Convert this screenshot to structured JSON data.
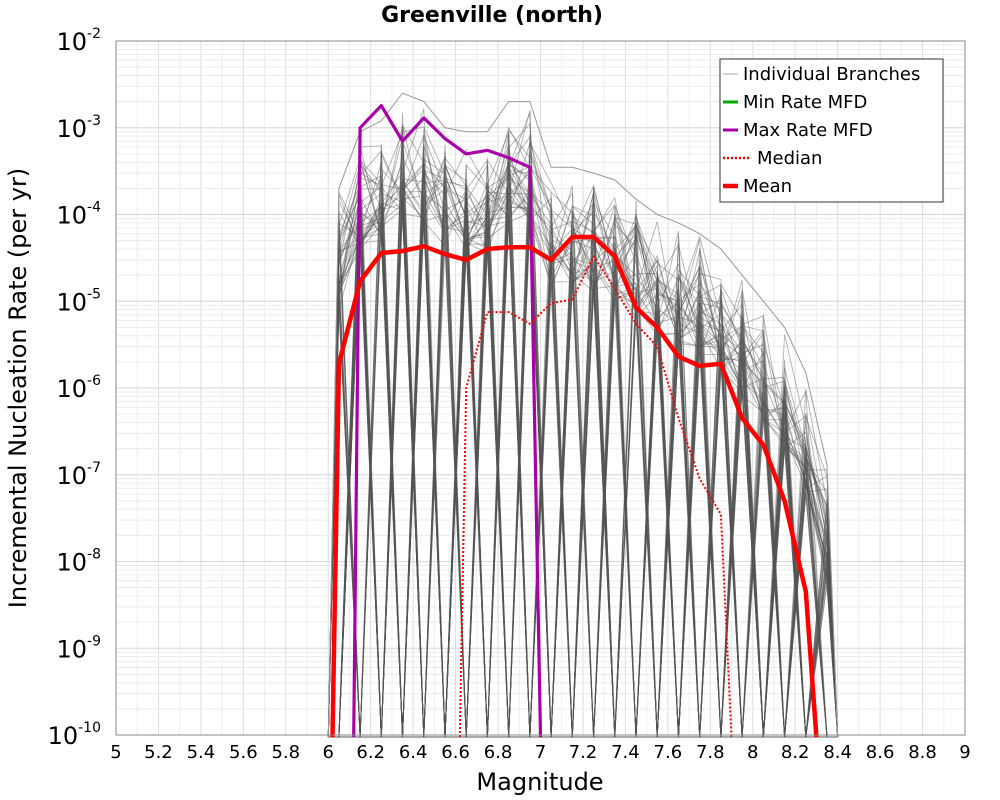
{
  "chart_data": {
    "type": "line",
    "title": "Greenville (north)",
    "xlabel": "Magnitude",
    "ylabel": "Incremental Nucleation Rate (per yr)",
    "xlim": [
      5,
      9
    ],
    "ylim": [
      1e-10,
      0.01
    ],
    "y_scale": "log",
    "grid": true,
    "legend_position": "top-right",
    "x_ticks": [
      "5",
      "5.2",
      "5.4",
      "5.6",
      "5.8",
      "6",
      "6.2",
      "6.4",
      "6.6",
      "6.8",
      "7",
      "7.2",
      "7.4",
      "7.6",
      "7.8",
      "8",
      "8.2",
      "8.4",
      "8.6",
      "8.8",
      "9"
    ],
    "y_ticks": [
      {
        "base": "10",
        "exp": "-10",
        "value": 1e-10
      },
      {
        "base": "10",
        "exp": "-9",
        "value": 1e-09
      },
      {
        "base": "10",
        "exp": "-8",
        "value": 1e-08
      },
      {
        "base": "10",
        "exp": "-7",
        "value": 1e-07
      },
      {
        "base": "10",
        "exp": "-6",
        "value": 1e-06
      },
      {
        "base": "10",
        "exp": "-5",
        "value": 1e-05
      },
      {
        "base": "10",
        "exp": "-4",
        "value": 0.0001
      },
      {
        "base": "10",
        "exp": "-3",
        "value": 0.001
      },
      {
        "base": "10",
        "exp": "-2",
        "value": 0.01
      }
    ],
    "x": [
      6.05,
      6.15,
      6.25,
      6.35,
      6.45,
      6.55,
      6.65,
      6.75,
      6.85,
      6.95,
      7.05,
      7.15,
      7.25,
      7.35,
      7.45,
      7.55,
      7.65,
      7.75,
      7.85,
      7.95,
      8.05,
      8.15,
      8.25,
      8.35
    ],
    "series": [
      {
        "name": "Individual Branches",
        "color": "#555555",
        "style": "band",
        "upper": [
          0.0002,
          0.0009,
          0.0012,
          0.0025,
          0.002,
          0.001,
          0.0009,
          0.0009,
          0.002,
          0.002,
          0.00035,
          0.00035,
          0.0003,
          0.00025,
          0.00015,
          0.0001,
          8e-05,
          6e-05,
          4e-05,
          2e-05,
          1e-05,
          5e-06,
          1.5e-06,
          1.3e-07
        ],
        "lower": [
          null,
          null,
          null,
          null,
          null,
          null,
          null,
          null,
          null,
          null,
          null,
          null,
          null,
          null,
          null,
          null,
          null,
          null,
          null,
          null,
          null,
          null,
          null,
          null
        ]
      },
      {
        "name": "Min Rate MFD",
        "color": "#00aa00",
        "style": "solid",
        "values": [
          null,
          null,
          null,
          null,
          null,
          null,
          null,
          null,
          null,
          null,
          null,
          null,
          null,
          null,
          null,
          null,
          null,
          null,
          null,
          null,
          null,
          null,
          null,
          null
        ]
      },
      {
        "name": "Max Rate MFD",
        "color": "#aa00aa",
        "style": "solid",
        "values": [
          null,
          0.001,
          0.0018,
          0.0007,
          0.0013,
          0.00075,
          0.0005,
          0.00055,
          0.00045,
          0.00035,
          null,
          null,
          null,
          null,
          null,
          null,
          null,
          null,
          null,
          null,
          null,
          null,
          null,
          null
        ]
      },
      {
        "name": "Median",
        "color": "#ff0000",
        "style": "dotted",
        "values": [
          null,
          null,
          null,
          null,
          null,
          null,
          1e-06,
          7.5e-06,
          7.5e-06,
          5.5e-06,
          9.5e-06,
          1.05e-05,
          3.3e-05,
          1.4e-05,
          5.5e-06,
          3e-06,
          4.5e-07,
          9e-08,
          3.5e-08,
          null,
          null,
          null,
          null,
          null
        ]
      },
      {
        "name": "Mean",
        "color": "#ff0000",
        "style": "solid-thick",
        "values": [
          1.9e-06,
          1.7e-05,
          3.6e-05,
          3.8e-05,
          4.3e-05,
          3.5e-05,
          3e-05,
          4e-05,
          4.2e-05,
          4.2e-05,
          3e-05,
          5.5e-05,
          5.5e-05,
          3.3e-05,
          8.5e-06,
          5e-06,
          2.3e-06,
          1.8e-06,
          1.9e-06,
          4.5e-07,
          2.2e-07,
          5e-08,
          4.5e-09,
          null
        ]
      }
    ]
  },
  "legend": {
    "items": [
      {
        "label": "Individual Branches",
        "color": "#aaaaaa",
        "style": "thin"
      },
      {
        "label": "Min Rate MFD",
        "color": "#00aa00",
        "style": "solid"
      },
      {
        "label": "Max Rate MFD",
        "color": "#aa00aa",
        "style": "solid"
      },
      {
        "label": "Median",
        "color": "#ff0000",
        "style": "dotted"
      },
      {
        "label": "Mean",
        "color": "#ff0000",
        "style": "thick"
      }
    ]
  }
}
